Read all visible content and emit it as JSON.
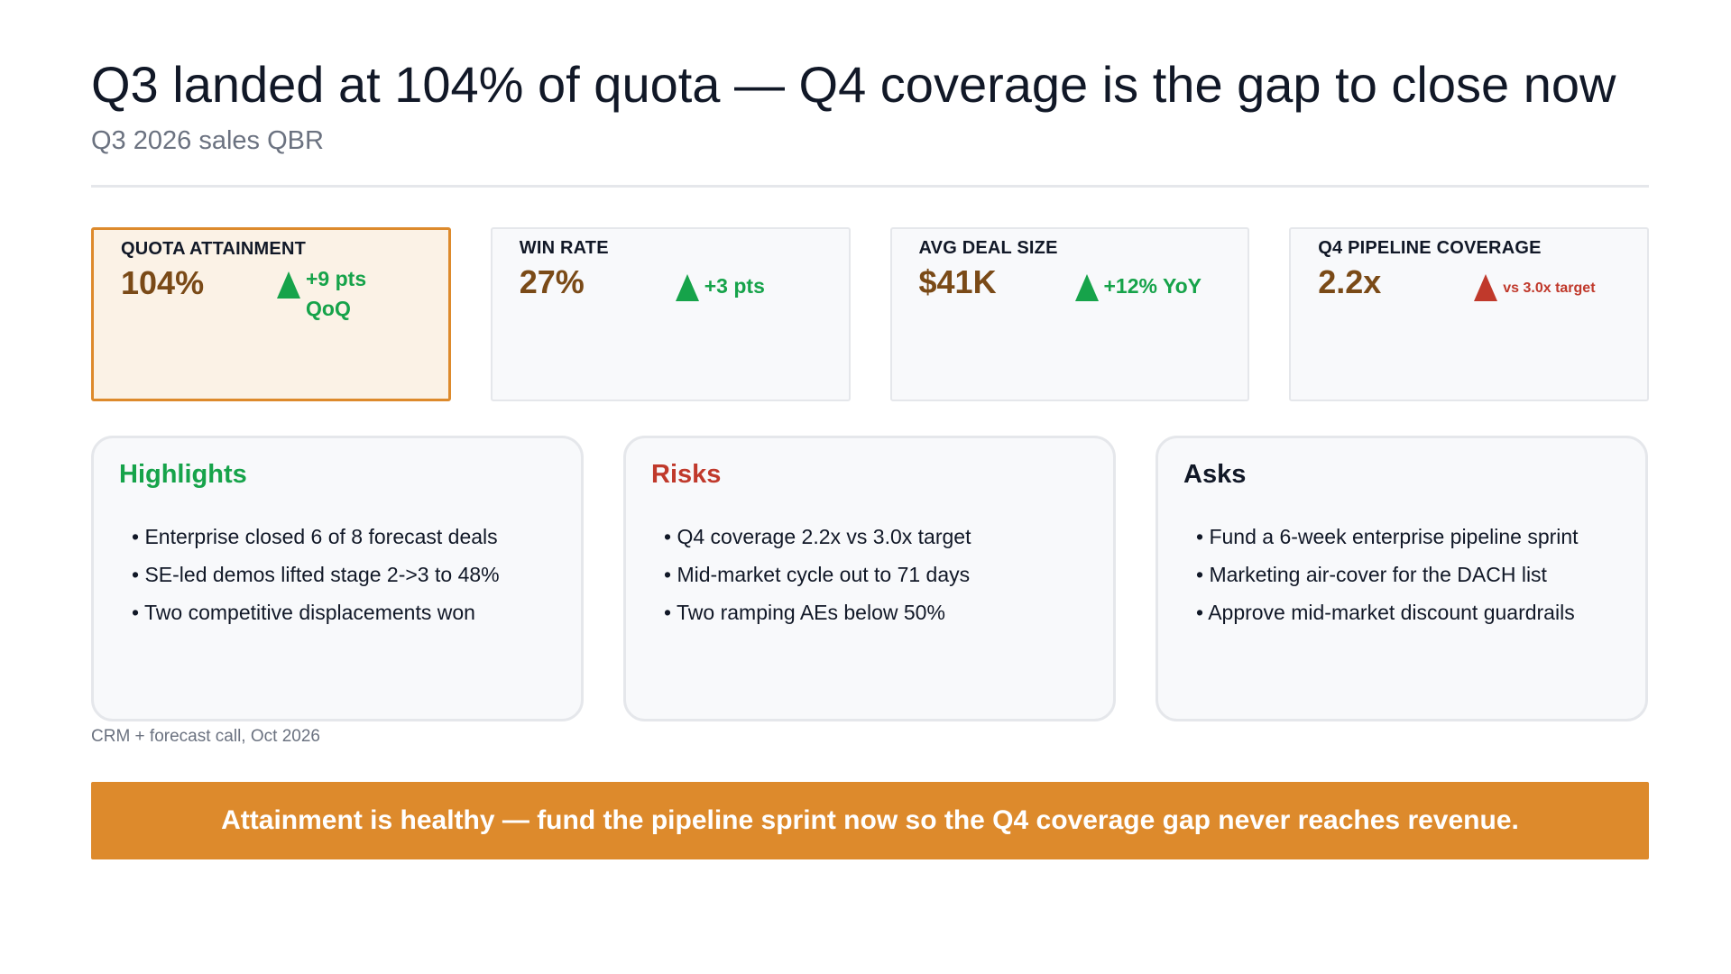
{
  "header": {
    "title": "Q3 landed at 104% of quota — Q4 coverage is the gap to close now",
    "subtitle": "Q3 2026 sales QBR"
  },
  "kpis": [
    {
      "label": "QUOTA ATTAINMENT",
      "value": "104%",
      "delta": "+9 pts QoQ",
      "direction": "up",
      "color": "#16a34a"
    },
    {
      "label": "WIN RATE",
      "value": "27%",
      "delta": "+3 pts",
      "direction": "up",
      "color": "#16a34a"
    },
    {
      "label": "AVG DEAL SIZE",
      "value": "$41K",
      "delta": "+12% YoY",
      "direction": "up",
      "color": "#16a34a"
    },
    {
      "label": "Q4 PIPELINE COVERAGE",
      "value": "2.2x",
      "delta": "vs 3.0x target",
      "direction": "up",
      "color": "#c0392b"
    }
  ],
  "panels": {
    "highlights": {
      "title": "Highlights",
      "items": [
        "Enterprise closed 6 of 8 forecast deals",
        "SE-led demos lifted stage 2->3 to 48%",
        "Two competitive displacements won"
      ]
    },
    "risks": {
      "title": "Risks",
      "items": [
        "Q4 coverage 2.2x vs 3.0x target",
        "Mid-market cycle out to 71 days",
        "Two ramping AEs below 50%"
      ]
    },
    "asks": {
      "title": "Asks",
      "items": [
        "Fund a 6-week enterprise pipeline sprint",
        "Marketing air-cover for the DACH list",
        "Approve mid-market discount guardrails"
      ]
    }
  },
  "source": "CRM + forecast call, Oct 2026",
  "banner": "Attainment is healthy — fund the pipeline sprint now so the Q4 coverage gap never reaches revenue.",
  "colors": {
    "accent": "#dd8a2c",
    "positive": "#16a34a",
    "negative": "#c0392b",
    "value": "#7a4a17"
  }
}
